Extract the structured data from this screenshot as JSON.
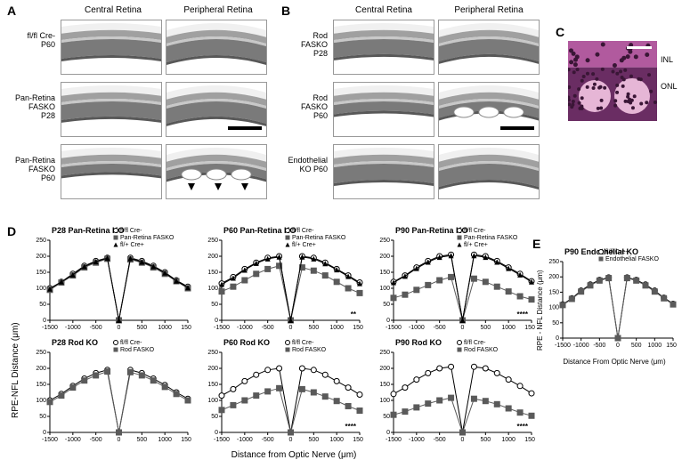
{
  "columns_AB": {
    "central": "Central Retina",
    "peripheral": "Peripheral Retina"
  },
  "panelA": {
    "label": "A",
    "rows": [
      {
        "label": "fl/fl Cre-\nP60"
      },
      {
        "label": "Pan-Retina\nFASKO\nP28"
      },
      {
        "label": "Pan-Retina\nFASKO\nP60"
      }
    ],
    "scalebar_text": "",
    "layer_colors": {
      "top": "#f0f0f0",
      "onl": "#7a7a7a",
      "inl": "#a0a0a0",
      "opl": "#c8c8c8",
      "rpe": "#585858",
      "bg": "#ffffff"
    }
  },
  "panelB": {
    "label": "B",
    "rows": [
      {
        "label": "Rod\nFASKO\nP28"
      },
      {
        "label": "Rod\nFASKO\nP60"
      },
      {
        "label": "Endothelial\nKO P60"
      }
    ]
  },
  "panelC": {
    "label": "C",
    "labels": {
      "inl": "INL",
      "onl": "ONL"
    },
    "colors": {
      "inl_bg": "#b15a9e",
      "onl_bg": "#6a2d63",
      "rosette": "#e6b6d6",
      "nucleus": "#3a1636"
    }
  },
  "panelD": {
    "label": "D",
    "ylabel": "RPE-NFL Distance (μm)",
    "xlabel": "Distance from Optic Nerve (μm)",
    "charts": [
      {
        "title": "P28 Pan-Retina KO",
        "legend": [
          {
            "marker": "open-circle",
            "label": "fl/fl Cre-"
          },
          {
            "marker": "filled-square",
            "label": "Pan-Retina FASKO"
          },
          {
            "marker": "filled-triangle",
            "label": "fl/+ Cre+"
          }
        ],
        "series": [
          {
            "marker": "open-circle",
            "color": "#000000",
            "fill": "#ffffff",
            "x": [
              -1500,
              -1250,
              -1000,
              -750,
              -500,
              -250,
              0,
              250,
              500,
              750,
              1000,
              1250,
              1500
            ],
            "y": [
              100,
              120,
              145,
              170,
              185,
              195,
              0,
              195,
              185,
              170,
              150,
              125,
              105
            ]
          },
          {
            "marker": "filled-square",
            "color": "#5a5a5a",
            "fill": "#5a5a5a",
            "x": [
              -1500,
              -1250,
              -1000,
              -750,
              -500,
              -250,
              0,
              250,
              500,
              750,
              1000,
              1250,
              1500
            ],
            "y": [
              95,
              118,
              140,
              165,
              180,
              192,
              0,
              190,
              180,
              165,
              145,
              122,
              100
            ]
          },
          {
            "marker": "filled-triangle",
            "color": "#000000",
            "fill": "#000000",
            "x": [
              -1500,
              -1250,
              -1000,
              -750,
              -500,
              -250,
              0,
              250,
              500,
              750,
              1000,
              1250,
              1500
            ],
            "y": [
              98,
              120,
              142,
              168,
              183,
              194,
              0,
              193,
              182,
              168,
              148,
              123,
              102
            ]
          }
        ],
        "sig": ""
      },
      {
        "title": "P60 Pan-Retina KO",
        "legend": [
          {
            "marker": "open-circle",
            "label": "fl/fl Cre-"
          },
          {
            "marker": "filled-square",
            "label": "Pan-Retina FASKO"
          },
          {
            "marker": "filled-triangle",
            "label": "fl/+ Cre+"
          }
        ],
        "series": [
          {
            "marker": "open-circle",
            "color": "#000000",
            "fill": "#ffffff",
            "x": [
              -1500,
              -1250,
              -1000,
              -750,
              -500,
              -250,
              0,
              250,
              500,
              750,
              1000,
              1250,
              1500
            ],
            "y": [
              115,
              135,
              160,
              180,
              195,
              200,
              0,
              200,
              195,
              180,
              160,
              140,
              118
            ]
          },
          {
            "marker": "filled-square",
            "color": "#5a5a5a",
            "fill": "#5a5a5a",
            "x": [
              -1500,
              -1250,
              -1000,
              -750,
              -500,
              -250,
              0,
              250,
              500,
              750,
              1000,
              1250,
              1500
            ],
            "y": [
              90,
              105,
              125,
              145,
              160,
              170,
              0,
              165,
              155,
              140,
              120,
              100,
              85
            ]
          },
          {
            "marker": "filled-triangle",
            "color": "#000000",
            "fill": "#000000",
            "x": [
              -1500,
              -1250,
              -1000,
              -750,
              -500,
              -250,
              0,
              250,
              500,
              750,
              1000,
              1250,
              1500
            ],
            "y": [
              112,
              132,
              157,
              178,
              192,
              198,
              0,
              198,
              192,
              177,
              158,
              137,
              115
            ]
          }
        ],
        "sig": "**"
      },
      {
        "title": "P90 Pan-Retina KO",
        "legend": [
          {
            "marker": "open-circle",
            "label": "fl/fl Cre-"
          },
          {
            "marker": "filled-square",
            "label": "Pan-Retina FASKO"
          },
          {
            "marker": "filled-triangle",
            "label": "fl/+ Cre+"
          }
        ],
        "series": [
          {
            "marker": "open-circle",
            "color": "#000000",
            "fill": "#ffffff",
            "x": [
              -1500,
              -1250,
              -1000,
              -750,
              -500,
              -250,
              0,
              250,
              500,
              750,
              1000,
              1250,
              1500
            ],
            "y": [
              120,
              140,
              165,
              185,
              200,
              205,
              0,
              205,
              200,
              185,
              165,
              145,
              122
            ]
          },
          {
            "marker": "filled-square",
            "color": "#5a5a5a",
            "fill": "#5a5a5a",
            "x": [
              -1500,
              -1250,
              -1000,
              -750,
              -500,
              -250,
              0,
              250,
              500,
              750,
              1000,
              1250,
              1500
            ],
            "y": [
              70,
              80,
              95,
              110,
              125,
              135,
              0,
              130,
              120,
              105,
              90,
              75,
              65
            ]
          },
          {
            "marker": "filled-triangle",
            "color": "#000000",
            "fill": "#000000",
            "x": [
              -1500,
              -1250,
              -1000,
              -750,
              -500,
              -250,
              0,
              250,
              500,
              750,
              1000,
              1250,
              1500
            ],
            "y": [
              118,
              138,
              162,
              182,
              197,
              202,
              0,
              202,
              197,
              182,
              162,
              142,
              120
            ]
          }
        ],
        "sig": "****"
      },
      {
        "title": "P28 Rod KO",
        "legend": [
          {
            "marker": "open-circle",
            "label": "fl/fl Cre-"
          },
          {
            "marker": "filled-square",
            "label": "Rod FASKO"
          }
        ],
        "series": [
          {
            "marker": "open-circle",
            "color": "#000000",
            "fill": "#ffffff",
            "x": [
              -1500,
              -1250,
              -1000,
              -750,
              -500,
              -250,
              0,
              250,
              500,
              750,
              1000,
              1250,
              1500
            ],
            "y": [
              100,
              120,
              145,
              168,
              185,
              195,
              0,
              195,
              185,
              168,
              148,
              125,
              105
            ]
          },
          {
            "marker": "filled-square",
            "color": "#5a5a5a",
            "fill": "#5a5a5a",
            "x": [
              -1500,
              -1250,
              -1000,
              -750,
              -500,
              -250,
              0,
              250,
              500,
              750,
              1000,
              1250,
              1500
            ],
            "y": [
              95,
              115,
              140,
              162,
              178,
              190,
              0,
              188,
              178,
              162,
              142,
              120,
              100
            ]
          }
        ],
        "sig": ""
      },
      {
        "title": "P60 Rod KO",
        "legend": [
          {
            "marker": "open-circle",
            "label": "fl/fl Cre-"
          },
          {
            "marker": "filled-square",
            "label": "Rod FASKO"
          }
        ],
        "series": [
          {
            "marker": "open-circle",
            "color": "#000000",
            "fill": "#ffffff",
            "x": [
              -1500,
              -1250,
              -1000,
              -750,
              -500,
              -250,
              0,
              250,
              500,
              750,
              1000,
              1250,
              1500
            ],
            "y": [
              115,
              135,
              160,
              180,
              195,
              200,
              0,
              200,
              195,
              180,
              160,
              140,
              118
            ]
          },
          {
            "marker": "filled-square",
            "color": "#5a5a5a",
            "fill": "#5a5a5a",
            "x": [
              -1500,
              -1250,
              -1000,
              -750,
              -500,
              -250,
              0,
              250,
              500,
              750,
              1000,
              1250,
              1500
            ],
            "y": [
              70,
              85,
              100,
              115,
              128,
              138,
              0,
              135,
              125,
              112,
              98,
              82,
              68
            ]
          }
        ],
        "sig": "****"
      },
      {
        "title": "P90 Rod KO",
        "legend": [
          {
            "marker": "open-circle",
            "label": "fl/fl Cre-"
          },
          {
            "marker": "filled-square",
            "label": "Rod FASKO"
          }
        ],
        "series": [
          {
            "marker": "open-circle",
            "color": "#000000",
            "fill": "#ffffff",
            "x": [
              -1500,
              -1250,
              -1000,
              -750,
              -500,
              -250,
              0,
              250,
              500,
              750,
              1000,
              1250,
              1500
            ],
            "y": [
              120,
              140,
              165,
              185,
              200,
              205,
              0,
              205,
              200,
              185,
              165,
              145,
              122
            ]
          },
          {
            "marker": "filled-square",
            "color": "#5a5a5a",
            "fill": "#5a5a5a",
            "x": [
              -1500,
              -1250,
              -1000,
              -750,
              -500,
              -250,
              0,
              250,
              500,
              750,
              1000,
              1250,
              1500
            ],
            "y": [
              55,
              65,
              78,
              90,
              100,
              108,
              0,
              105,
              98,
              88,
              75,
              62,
              52
            ]
          }
        ],
        "sig": "****"
      }
    ],
    "xlim": [
      -1500,
      1500
    ],
    "ylim": [
      0,
      250
    ],
    "xticks": [
      -1500,
      -1000,
      -500,
      0,
      500,
      1000,
      1500
    ],
    "yticks": [
      0,
      50,
      100,
      150,
      200,
      250
    ]
  },
  "panelE": {
    "label": "E",
    "title": "P90 Endothelial KO",
    "ylabel": "RPE - NFL Distance (μm)",
    "xlabel": "Distance From Optic Nerve (μm)",
    "legend": [
      {
        "marker": "open-circle",
        "label": "fl/fl Cre-"
      },
      {
        "marker": "filled-square",
        "label": "Endothelial FASKO"
      }
    ],
    "series": [
      {
        "marker": "open-circle",
        "color": "#000000",
        "fill": "#ffffff",
        "x": [
          -1500,
          -1250,
          -1000,
          -750,
          -500,
          -250,
          0,
          250,
          500,
          750,
          1000,
          1250,
          1500
        ],
        "y": [
          110,
          130,
          155,
          175,
          190,
          198,
          0,
          198,
          190,
          175,
          155,
          132,
          112
        ]
      },
      {
        "marker": "filled-square",
        "color": "#5a5a5a",
        "fill": "#5a5a5a",
        "x": [
          -1500,
          -1250,
          -1000,
          -750,
          -500,
          -250,
          0,
          250,
          500,
          750,
          1000,
          1250,
          1500
        ],
        "y": [
          108,
          128,
          152,
          172,
          188,
          196,
          0,
          196,
          188,
          172,
          152,
          130,
          110
        ]
      }
    ],
    "xlim": [
      -1500,
      1500
    ],
    "ylim": [
      0,
      250
    ],
    "xticks": [
      -1500,
      -1000,
      -500,
      0,
      500,
      1000,
      1500
    ],
    "yticks": [
      0,
      50,
      100,
      150,
      200,
      250
    ]
  },
  "chart_style": {
    "axis_color": "#000000",
    "tick_fontsize": 7,
    "title_fontsize": 9,
    "legend_fontsize": 7,
    "line_width": 1,
    "marker_size": 3,
    "errorbar_halfheight": 6
  }
}
